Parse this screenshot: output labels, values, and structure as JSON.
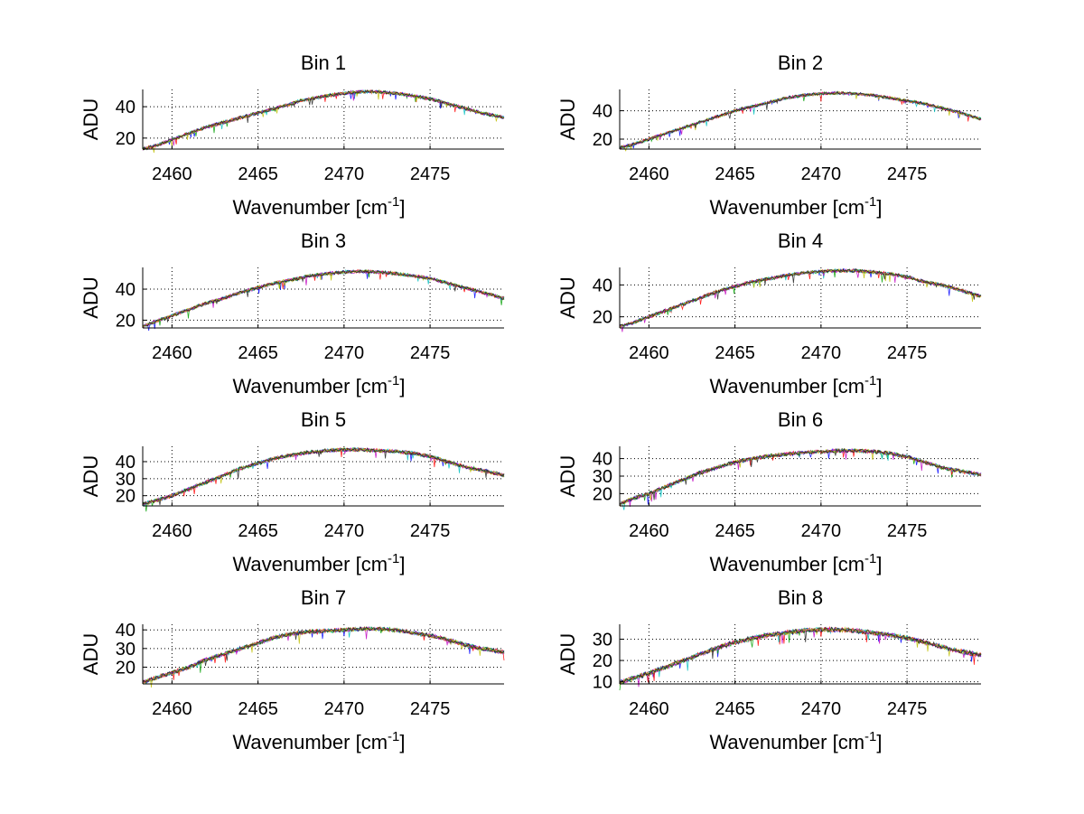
{
  "figure": {
    "background": "#ffffff",
    "line_colors": [
      "#0000ff",
      "#00a000",
      "#ff0000",
      "#00bfbf",
      "#bf00bf",
      "#bfbf00",
      "#202020"
    ]
  },
  "chart_data": [
    {
      "type": "line",
      "title": "Bin 1",
      "xlabel": "Wavenumber [cm",
      "xlabel_sup": "-1",
      "xlabel_end": "]",
      "ylabel": "ADU",
      "xlim": [
        2458.3,
        2479.3
      ],
      "ylim": [
        13,
        51
      ],
      "xticks": [
        2460,
        2465,
        2470,
        2475
      ],
      "yticks": [
        20,
        40
      ],
      "grid": true,
      "x": [
        2458.3,
        2459,
        2460,
        2461,
        2462,
        2463,
        2464,
        2465,
        2466,
        2467,
        2467.5,
        2468,
        2469,
        2470,
        2471,
        2472,
        2473,
        2474,
        2475,
        2476,
        2477,
        2478,
        2479.3
      ],
      "series": [
        {
          "values": [
            13,
            15,
            19,
            23,
            27,
            30,
            33,
            36,
            39,
            42,
            44,
            45,
            47,
            48.5,
            49.5,
            49.5,
            48.5,
            47,
            45,
            42,
            39,
            36,
            33
          ]
        }
      ]
    },
    {
      "type": "line",
      "title": "Bin 2",
      "xlabel": "Wavenumber [cm",
      "xlabel_sup": "-1",
      "xlabel_end": "]",
      "ylabel": "ADU",
      "xlim": [
        2458.3,
        2479.3
      ],
      "ylim": [
        13,
        55
      ],
      "xticks": [
        2460,
        2465,
        2470,
        2475
      ],
      "yticks": [
        20,
        40
      ],
      "grid": true,
      "x": [
        2458.3,
        2459,
        2460,
        2461,
        2462,
        2463,
        2464,
        2465,
        2466,
        2467,
        2468,
        2469,
        2470,
        2471,
        2472,
        2473,
        2474,
        2475,
        2476,
        2477,
        2478,
        2479.3
      ],
      "series": [
        {
          "values": [
            14,
            16,
            20,
            24,
            28,
            32,
            36,
            40,
            43,
            46,
            49,
            51,
            52,
            52.5,
            52,
            51,
            49,
            47,
            45,
            42,
            39,
            34
          ]
        }
      ]
    },
    {
      "type": "line",
      "title": "Bin 3",
      "xlabel": "Wavenumber [cm",
      "xlabel_sup": "-1",
      "xlabel_end": "]",
      "ylabel": "ADU",
      "xlim": [
        2458.3,
        2479.3
      ],
      "ylim": [
        15,
        54
      ],
      "xticks": [
        2460,
        2465,
        2470,
        2475
      ],
      "yticks": [
        20,
        40
      ],
      "grid": true,
      "x": [
        2458.3,
        2459,
        2460,
        2461,
        2462,
        2463,
        2464,
        2465,
        2466,
        2467,
        2468,
        2469,
        2470,
        2471,
        2472,
        2473,
        2474,
        2475,
        2476,
        2477,
        2478,
        2479.3
      ],
      "series": [
        {
          "values": [
            16,
            19,
            23,
            27,
            31,
            34,
            38,
            41,
            44,
            46,
            48.5,
            50,
            51,
            51.5,
            51,
            50,
            48.5,
            47,
            44,
            41,
            38,
            34
          ]
        }
      ]
    },
    {
      "type": "line",
      "title": "Bin 4",
      "xlabel": "Wavenumber [cm",
      "xlabel_sup": "-1",
      "xlabel_end": "]",
      "ylabel": "ADU",
      "xlim": [
        2458.3,
        2479.3
      ],
      "ylim": [
        13,
        51
      ],
      "xticks": [
        2460,
        2465,
        2470,
        2475
      ],
      "yticks": [
        20,
        40
      ],
      "grid": true,
      "x": [
        2458.3,
        2459,
        2460,
        2461,
        2462,
        2463,
        2464,
        2465,
        2466,
        2467,
        2468,
        2469,
        2470,
        2471,
        2472,
        2473,
        2474,
        2475,
        2476,
        2477,
        2478,
        2479.3
      ],
      "series": [
        {
          "values": [
            14,
            16,
            20,
            24,
            28,
            32,
            36,
            39,
            42,
            44,
            46,
            47.5,
            48.5,
            49,
            49,
            48,
            47,
            45,
            42,
            40,
            37,
            33
          ]
        }
      ]
    },
    {
      "type": "line",
      "title": "Bin 5",
      "xlabel": "Wavenumber [cm",
      "xlabel_sup": "-1",
      "xlabel_end": "]",
      "ylabel": "ADU",
      "xlim": [
        2458.3,
        2479.3
      ],
      "ylim": [
        14,
        49
      ],
      "xticks": [
        2460,
        2465,
        2470,
        2475
      ],
      "yticks": [
        20,
        30,
        40
      ],
      "grid": true,
      "x": [
        2458.3,
        2459,
        2460,
        2461,
        2462,
        2463,
        2464,
        2465,
        2466,
        2467,
        2468,
        2469,
        2470,
        2471,
        2472,
        2473,
        2474,
        2475,
        2476,
        2477,
        2478,
        2479.3
      ],
      "series": [
        {
          "values": [
            15,
            17,
            20,
            24,
            28,
            32,
            36,
            39,
            42,
            44,
            45.5,
            46.5,
            47,
            47,
            46.5,
            46,
            45,
            43,
            40,
            37,
            35,
            32
          ]
        }
      ]
    },
    {
      "type": "line",
      "title": "Bin 6",
      "xlabel": "Wavenumber [cm",
      "xlabel_sup": "-1",
      "xlabel_end": "]",
      "ylabel": "ADU",
      "xlim": [
        2458.3,
        2479.3
      ],
      "ylim": [
        13,
        47
      ],
      "xticks": [
        2460,
        2465,
        2470,
        2475
      ],
      "yticks": [
        20,
        30,
        40
      ],
      "grid": true,
      "x": [
        2458.3,
        2459,
        2460,
        2461,
        2462,
        2463,
        2464,
        2465,
        2466,
        2467,
        2468,
        2469,
        2470,
        2471,
        2472,
        2473,
        2474,
        2475,
        2476,
        2477,
        2478,
        2479.3
      ],
      "series": [
        {
          "values": [
            14,
            17,
            20,
            24,
            28,
            32,
            35,
            38,
            40,
            41.5,
            42.5,
            43.5,
            44,
            44.5,
            44.5,
            44,
            43,
            41,
            38,
            35,
            33,
            31
          ]
        }
      ]
    },
    {
      "type": "line",
      "title": "Bin 7",
      "xlabel": "Wavenumber [cm",
      "xlabel_sup": "-1",
      "xlabel_end": "]",
      "ylabel": "ADU",
      "xlim": [
        2458.3,
        2479.3
      ],
      "ylim": [
        11,
        43
      ],
      "xticks": [
        2460,
        2465,
        2470,
        2475
      ],
      "yticks": [
        20,
        30,
        40
      ],
      "grid": true,
      "x": [
        2458.3,
        2459,
        2460,
        2461,
        2462,
        2463,
        2464,
        2465,
        2466,
        2467,
        2468,
        2469,
        2470,
        2471,
        2472,
        2473,
        2474,
        2475,
        2476,
        2477,
        2478,
        2479.3
      ],
      "series": [
        {
          "values": [
            12,
            14,
            17,
            20,
            24,
            27,
            30,
            33,
            36,
            38,
            39,
            39.5,
            40,
            40.5,
            40.5,
            40,
            38.5,
            37,
            35,
            32,
            30,
            28
          ]
        }
      ]
    },
    {
      "type": "line",
      "title": "Bin 8",
      "xlabel": "Wavenumber [cm",
      "xlabel_sup": "-1",
      "xlabel_end": "]",
      "ylabel": "ADU",
      "xlim": [
        2458.3,
        2479.3
      ],
      "ylim": [
        9,
        37
      ],
      "xticks": [
        2460,
        2465,
        2470,
        2475
      ],
      "yticks": [
        10,
        20,
        30
      ],
      "grid": true,
      "x": [
        2458.3,
        2459,
        2460,
        2461,
        2462,
        2463,
        2464,
        2465,
        2466,
        2467,
        2468,
        2469,
        2470,
        2471,
        2472,
        2473,
        2474,
        2475,
        2476,
        2477,
        2478,
        2479.3
      ],
      "series": [
        {
          "values": [
            9.5,
            11.5,
            14,
            17,
            20,
            23,
            26,
            28.5,
            30.5,
            32,
            33,
            34,
            34.5,
            34.5,
            34,
            33,
            32,
            30.5,
            28.5,
            26.5,
            24.5,
            22.5
          ]
        }
      ]
    }
  ]
}
